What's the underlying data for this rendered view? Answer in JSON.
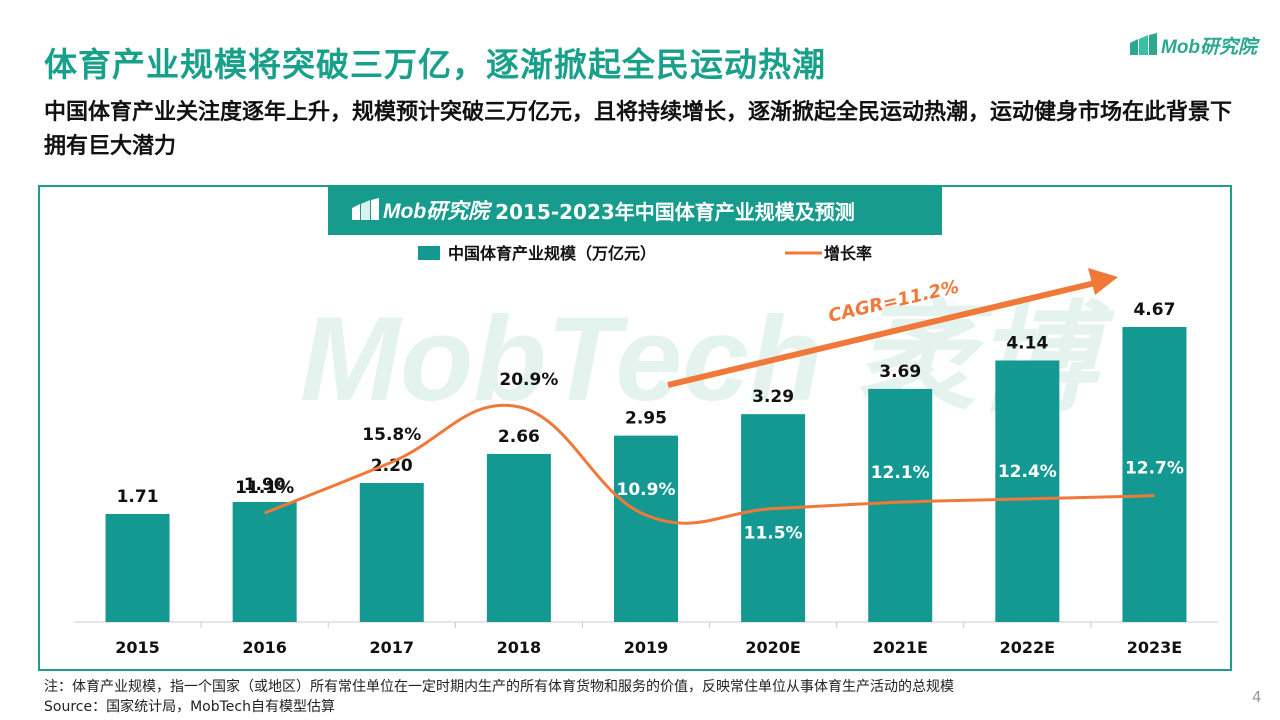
{
  "brand": {
    "name": "Mob研究院",
    "color": "#2ba88e"
  },
  "headline": "体育产业规模将突破三万亿，逐渐掀起全民运动热潮",
  "subtitle": "中国体育产业关注度逐年上升，规模预计突破三万亿元，且将持续增长，逐渐掀起全民运动热潮，运动健身市场在此背景下拥有巨大潜力",
  "chart_title": "2015-2023年中国体育产业规模及预测",
  "watermark": {
    "text": "MobTech 袤博"
  },
  "chart_data": {
    "type": "bar",
    "title": "2015-2023年中国体育产业规模及预测",
    "categories": [
      "2015",
      "2016",
      "2017",
      "2018",
      "2019",
      "2020E",
      "2021E",
      "2022E",
      "2023E"
    ],
    "series": [
      {
        "name": "中国体育产业规模（万亿元）",
        "type": "bar",
        "values": [
          1.71,
          1.9,
          2.2,
          2.66,
          2.95,
          3.29,
          3.69,
          4.14,
          4.67
        ],
        "labels": [
          "1.71",
          "1.90",
          "2.20",
          "2.66",
          "2.95",
          "3.29",
          "3.69",
          "4.14",
          "4.67"
        ],
        "color": "#149892"
      },
      {
        "name": "增长率",
        "type": "line",
        "values": [
          null,
          11.1,
          15.8,
          20.9,
          10.9,
          11.5,
          12.1,
          12.4,
          12.7
        ],
        "labels": [
          "",
          "11.1%",
          "15.8%",
          "20.9%",
          "10.9%",
          "11.5%",
          "12.1%",
          "12.4%",
          "12.7%"
        ],
        "color": "#f0793a"
      }
    ],
    "bar_ylim": [
      0,
      5.5
    ],
    "line_ylim": [
      -10,
      28
    ],
    "annotation": "CAGR=11.2%",
    "legend": "top-center",
    "grid": false,
    "xlabel": "",
    "ylabel": ""
  },
  "notes": {
    "definition": "注：体育产业规模，指一个国家（或地区）所有常住单位在一定时期内生产的所有体育货物和服务的价值，反映常住单位从事体育生产活动的总规模",
    "source": "Source：国家统计局，MobTech自有模型估算"
  },
  "page_number": "4"
}
